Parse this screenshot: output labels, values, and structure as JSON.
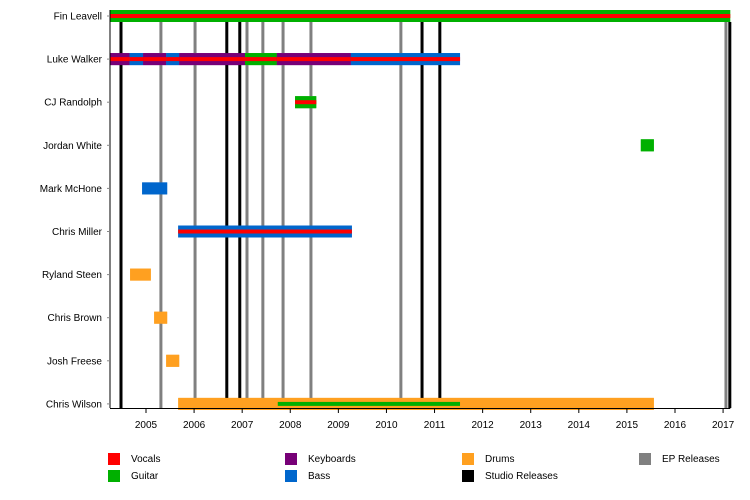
{
  "chart_data": {
    "type": "timeline",
    "title": "",
    "xlabel": "",
    "ylabel": "",
    "xlim": [
      2004.25,
      2017.15
    ],
    "x_ticks": [
      "2005",
      "2006",
      "2007",
      "2008",
      "2009",
      "2010",
      "2011",
      "2012",
      "2013",
      "2014",
      "2015",
      "2016",
      "2017"
    ],
    "members": [
      {
        "name": "Fin Leavell",
        "bars": [
          {
            "role": "Guitar",
            "start": 2004.25,
            "end": 2017.15,
            "stripe": "Vocals"
          }
        ]
      },
      {
        "name": "Luke Walker",
        "bars": [
          {
            "role": "Keyboards",
            "start": 2004.25,
            "end": 2004.66,
            "stripe": "Vocals"
          },
          {
            "role": "Bass",
            "start": 2004.66,
            "end": 2004.94,
            "stripe": "Vocals"
          },
          {
            "role": "Keyboards",
            "start": 2004.94,
            "end": 2005.42,
            "stripe": "Vocals"
          },
          {
            "role": "Bass",
            "start": 2005.42,
            "end": 2005.69,
            "stripe": "Vocals"
          },
          {
            "role": "Keyboards",
            "start": 2005.69,
            "end": 2007.06,
            "stripe": "Vocals"
          },
          {
            "role": "Guitar",
            "start": 2007.06,
            "end": 2007.72,
            "stripe": "Vocals"
          },
          {
            "role": "Keyboards",
            "start": 2007.72,
            "end": 2009.26,
            "stripe": "Vocals"
          },
          {
            "role": "Bass",
            "start": 2009.26,
            "end": 2011.53,
            "stripe": "Vocals"
          }
        ]
      },
      {
        "name": "CJ Randolph",
        "bars": [
          {
            "role": "Guitar",
            "start": 2008.1,
            "end": 2008.54,
            "stripe": "Vocals"
          }
        ]
      },
      {
        "name": "Jordan White",
        "bars": [
          {
            "role": "Guitar",
            "start": 2015.29,
            "end": 2015.56,
            "stripe": null
          }
        ]
      },
      {
        "name": "Mark McHone",
        "bars": [
          {
            "role": "Bass",
            "start": 2004.92,
            "end": 2005.44,
            "stripe": null
          }
        ]
      },
      {
        "name": "Chris Miller",
        "bars": [
          {
            "role": "Bass",
            "start": 2005.67,
            "end": 2009.28,
            "stripe": "Vocals"
          }
        ]
      },
      {
        "name": "Ryland Steen",
        "bars": [
          {
            "role": "Drums",
            "start": 2004.67,
            "end": 2005.1,
            "stripe": null
          }
        ]
      },
      {
        "name": "Chris Brown",
        "bars": [
          {
            "role": "Drums",
            "start": 2005.17,
            "end": 2005.44,
            "stripe": null
          }
        ]
      },
      {
        "name": "Josh Freese",
        "bars": [
          {
            "role": "Drums",
            "start": 2005.42,
            "end": 2005.69,
            "stripe": null
          }
        ]
      },
      {
        "name": "Chris Wilson",
        "bars": [
          {
            "role": "Drums",
            "start": 2005.67,
            "end": 2015.56,
            "stripe": null
          },
          {
            "role": "Guitar",
            "start": 2007.74,
            "end": 2011.53,
            "stripe": null,
            "thin": true
          }
        ]
      }
    ],
    "releases": [
      {
        "type": "Studio Releases",
        "year": 2004.48
      },
      {
        "type": "EP Releases",
        "year": 2005.31
      },
      {
        "type": "EP Releases",
        "year": 2006.02
      },
      {
        "type": "Studio Releases",
        "year": 2006.68
      },
      {
        "type": "Studio Releases",
        "year": 2006.95
      },
      {
        "type": "EP Releases",
        "year": 2007.1
      },
      {
        "type": "EP Releases",
        "year": 2007.43
      },
      {
        "type": "EP Releases",
        "year": 2007.85
      },
      {
        "type": "EP Releases",
        "year": 2008.43
      },
      {
        "type": "EP Releases",
        "year": 2010.3
      },
      {
        "type": "Studio Releases",
        "year": 2010.74
      },
      {
        "type": "Studio Releases",
        "year": 2011.11
      },
      {
        "type": "EP Releases",
        "year": 2017.06
      },
      {
        "type": "Studio Releases",
        "year": 2017.14
      }
    ],
    "legend": [
      {
        "label": "Vocals",
        "color": "#ff0000"
      },
      {
        "label": "Guitar",
        "color": "#00b000"
      },
      {
        "label": "Keyboards",
        "color": "#770077"
      },
      {
        "label": "Bass",
        "color": "#0066cc"
      },
      {
        "label": "Drums",
        "color": "#ffa020"
      },
      {
        "label": "Studio Releases",
        "color": "#000000"
      },
      {
        "label": "EP Releases",
        "color": "#808080"
      }
    ],
    "legend_position": "bottom",
    "grid": false
  }
}
